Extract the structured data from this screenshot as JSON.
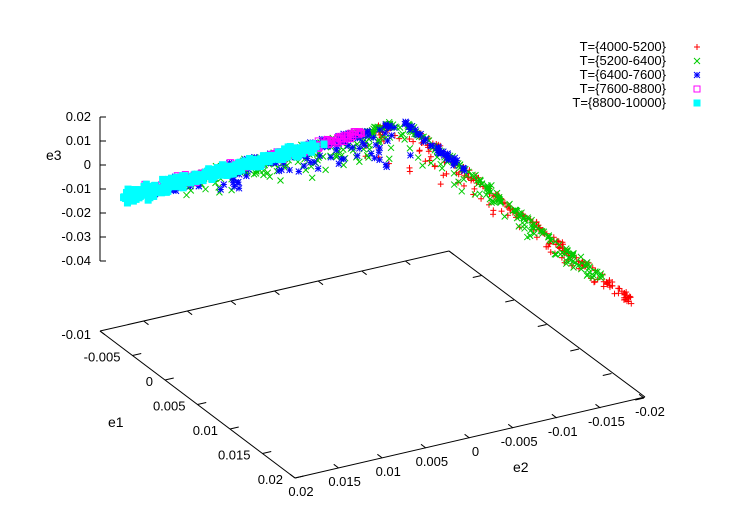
{
  "chart_data": {
    "type": "scatter",
    "projection": "3d",
    "xlabel": "e1",
    "ylabel": "e2",
    "zlabel": "e3",
    "xlim": [
      -0.01,
      0.02
    ],
    "ylim": [
      -0.02,
      0.02
    ],
    "zlim": [
      -0.04,
      0.02
    ],
    "x_ticks": [
      "-0.005",
      "0",
      "0.005",
      "0.01",
      "0.015",
      "0.02"
    ],
    "y_ticks": [
      "0.02",
      "0.015",
      "0.01",
      "0.005",
      "0",
      "-0.005",
      "-0.01",
      "-0.015",
      "-0.02"
    ],
    "z_ticks": [
      "0.02",
      "0.01",
      "0",
      "-0.01",
      "-0.02",
      "-0.03",
      "-0.04"
    ],
    "base_label": "-0.01",
    "grid": false,
    "legend_position": "top-right",
    "series": [
      {
        "name": "T={4000-5200}",
        "marker": "plus",
        "color": "#ff0000"
      },
      {
        "name": "T={5200-6400}",
        "marker": "cross",
        "color": "#00cc00"
      },
      {
        "name": "T={6400-7600}",
        "marker": "asterisk",
        "color": "#0000ff"
      },
      {
        "name": "T={7600-8800}",
        "marker": "open-square",
        "color": "#ff00ff"
      },
      {
        "name": "T={8800-10000}",
        "marker": "filled-square",
        "color": "#00ffff"
      }
    ]
  }
}
